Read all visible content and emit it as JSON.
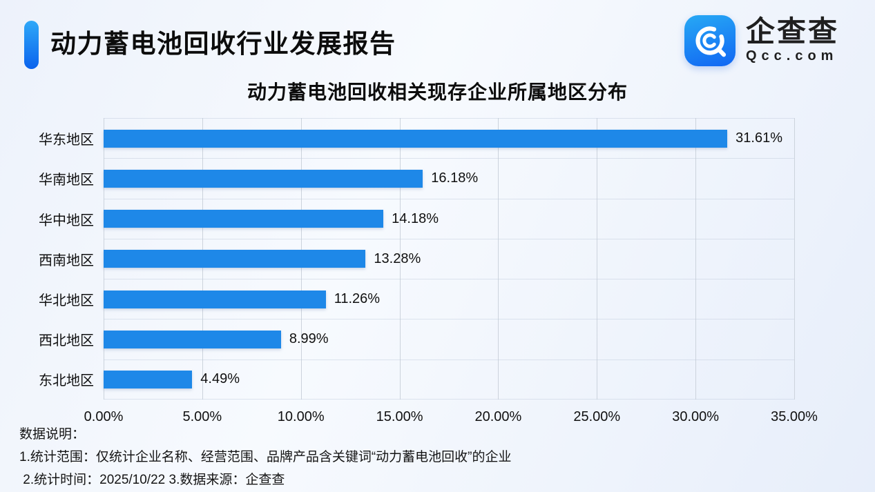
{
  "header": {
    "title": "动力蓄电池回收行业发展报告",
    "logo": {
      "brand": "企查查",
      "domain": "Qcc.com"
    }
  },
  "chart_data": {
    "type": "bar",
    "orientation": "horizontal",
    "title": "动力蓄电池回收相关现存企业所属地区分布",
    "categories": [
      "华东地区",
      "华南地区",
      "华中地区",
      "西南地区",
      "华北地区",
      "西北地区",
      "东北地区"
    ],
    "values": [
      31.61,
      16.18,
      14.18,
      13.28,
      11.26,
      8.99,
      4.49
    ],
    "value_labels": [
      "31.61%",
      "16.18%",
      "14.18%",
      "13.28%",
      "11.26%",
      "8.99%",
      "4.49%"
    ],
    "x_ticks": [
      "0.00%",
      "5.00%",
      "10.00%",
      "15.00%",
      "20.00%",
      "25.00%",
      "30.00%",
      "35.00%"
    ],
    "xlim": [
      0,
      35
    ],
    "xlabel": "",
    "ylabel": "",
    "grid": "vertical",
    "legend": "none",
    "bar_color": "#1E88E8"
  },
  "footer": {
    "label": "数据说明：",
    "lines": [
      "1.统计范围：仅统计企业名称、经营范围、品牌产品含关键词“动力蓄电池回收”的企业",
      " 2.统计时间：2025/10/22 3.数据来源：企查查"
    ]
  },
  "colors": {
    "bar": "#1E88E8",
    "accent_top": "#2FA9F8",
    "accent_bottom": "#0B63ED",
    "gridline": "#CCD3DC",
    "background": "#EDF2FB"
  }
}
